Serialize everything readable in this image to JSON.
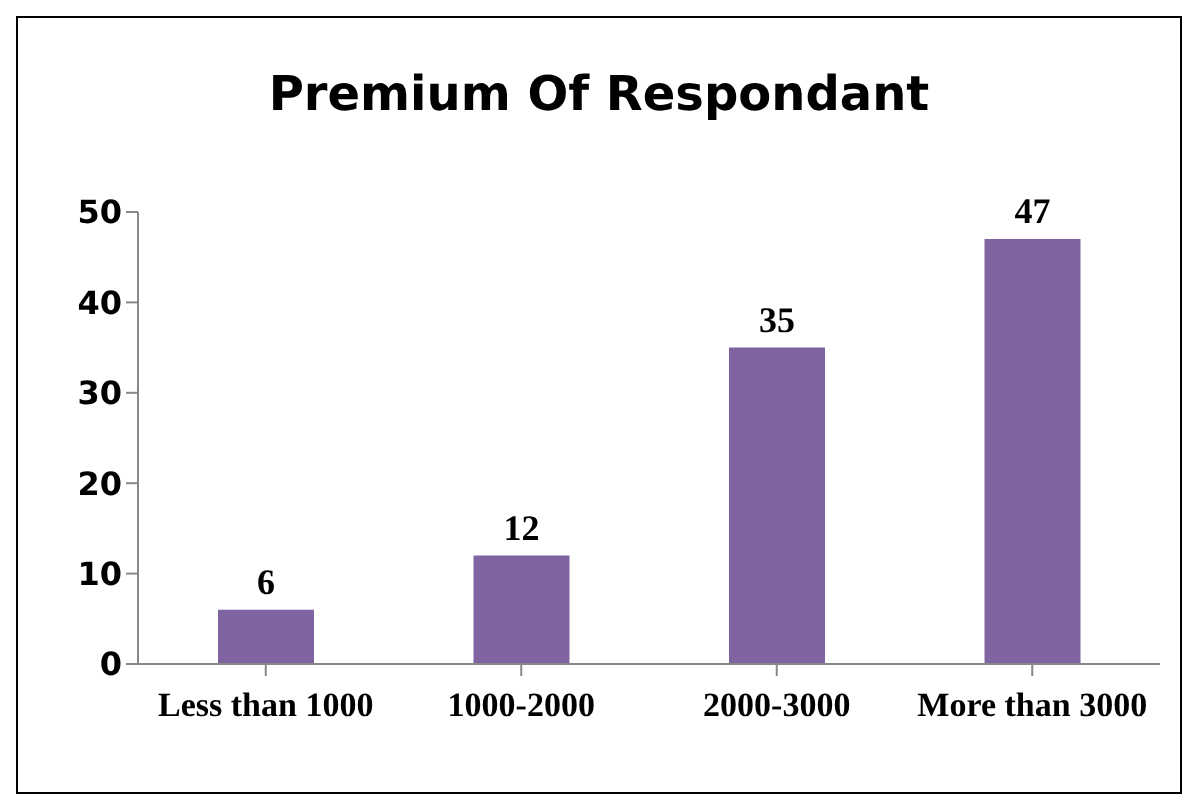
{
  "chart_data": {
    "type": "bar",
    "title": "Premium Of Respondant",
    "categories": [
      "Less than 1000",
      "1000-2000",
      "2000-3000",
      "More than 3000"
    ],
    "values": [
      6,
      12,
      35,
      47
    ],
    "color": "#8064a2",
    "ylim": [
      0,
      50
    ],
    "yticks": [
      0,
      10,
      20,
      30,
      40,
      50
    ],
    "grid": false,
    "legend": false,
    "data_labels": true
  }
}
